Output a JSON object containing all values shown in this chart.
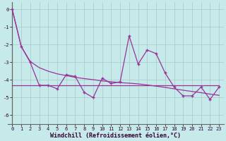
{
  "xlabel": "Windchill (Refroidissement éolien,°C)",
  "background_color": "#c6eaea",
  "grid_color": "#a8c8c8",
  "line_color": "#993399",
  "x": [
    0,
    1,
    2,
    3,
    4,
    5,
    6,
    7,
    8,
    9,
    10,
    11,
    12,
    13,
    14,
    15,
    16,
    17,
    18,
    19,
    20,
    21,
    22,
    23
  ],
  "y_main": [
    0.0,
    -2.1,
    -3.0,
    -4.3,
    -4.3,
    -4.5,
    -3.7,
    -3.8,
    -4.7,
    -5.0,
    -3.9,
    -4.2,
    -4.1,
    -1.5,
    -3.1,
    -2.3,
    -2.5,
    -3.6,
    -4.4,
    -4.9,
    -4.9,
    -4.4,
    -5.1,
    -4.4
  ],
  "y_trend_flat": [
    -4.3,
    -4.3,
    -4.3,
    -4.3,
    -4.3,
    -4.3,
    -4.3,
    -4.3,
    -4.3,
    -4.3,
    -4.3,
    -4.3,
    -4.3,
    -4.3,
    -4.3,
    -4.3,
    -4.3,
    -4.3,
    -4.3,
    -4.3,
    -4.3,
    -4.3,
    -4.3,
    -4.3
  ],
  "y_trend_slope": [
    0.0,
    -2.1,
    -2.95,
    -3.3,
    -3.5,
    -3.65,
    -3.75,
    -3.85,
    -3.92,
    -3.98,
    -4.05,
    -4.1,
    -4.15,
    -4.18,
    -4.22,
    -4.28,
    -4.35,
    -4.42,
    -4.5,
    -4.58,
    -4.65,
    -4.72,
    -4.8,
    -4.87
  ],
  "ylim": [
    -6.5,
    0.4
  ],
  "xlim": [
    -0.5,
    23.5
  ],
  "yticks": [
    0,
    -1,
    -2,
    -3,
    -4,
    -5,
    -6
  ],
  "xticks": [
    0,
    1,
    2,
    3,
    4,
    5,
    6,
    7,
    8,
    9,
    10,
    11,
    12,
    13,
    14,
    15,
    16,
    17,
    18,
    19,
    20,
    21,
    22,
    23
  ],
  "tick_fontsize": 5,
  "xlabel_fontsize": 6
}
